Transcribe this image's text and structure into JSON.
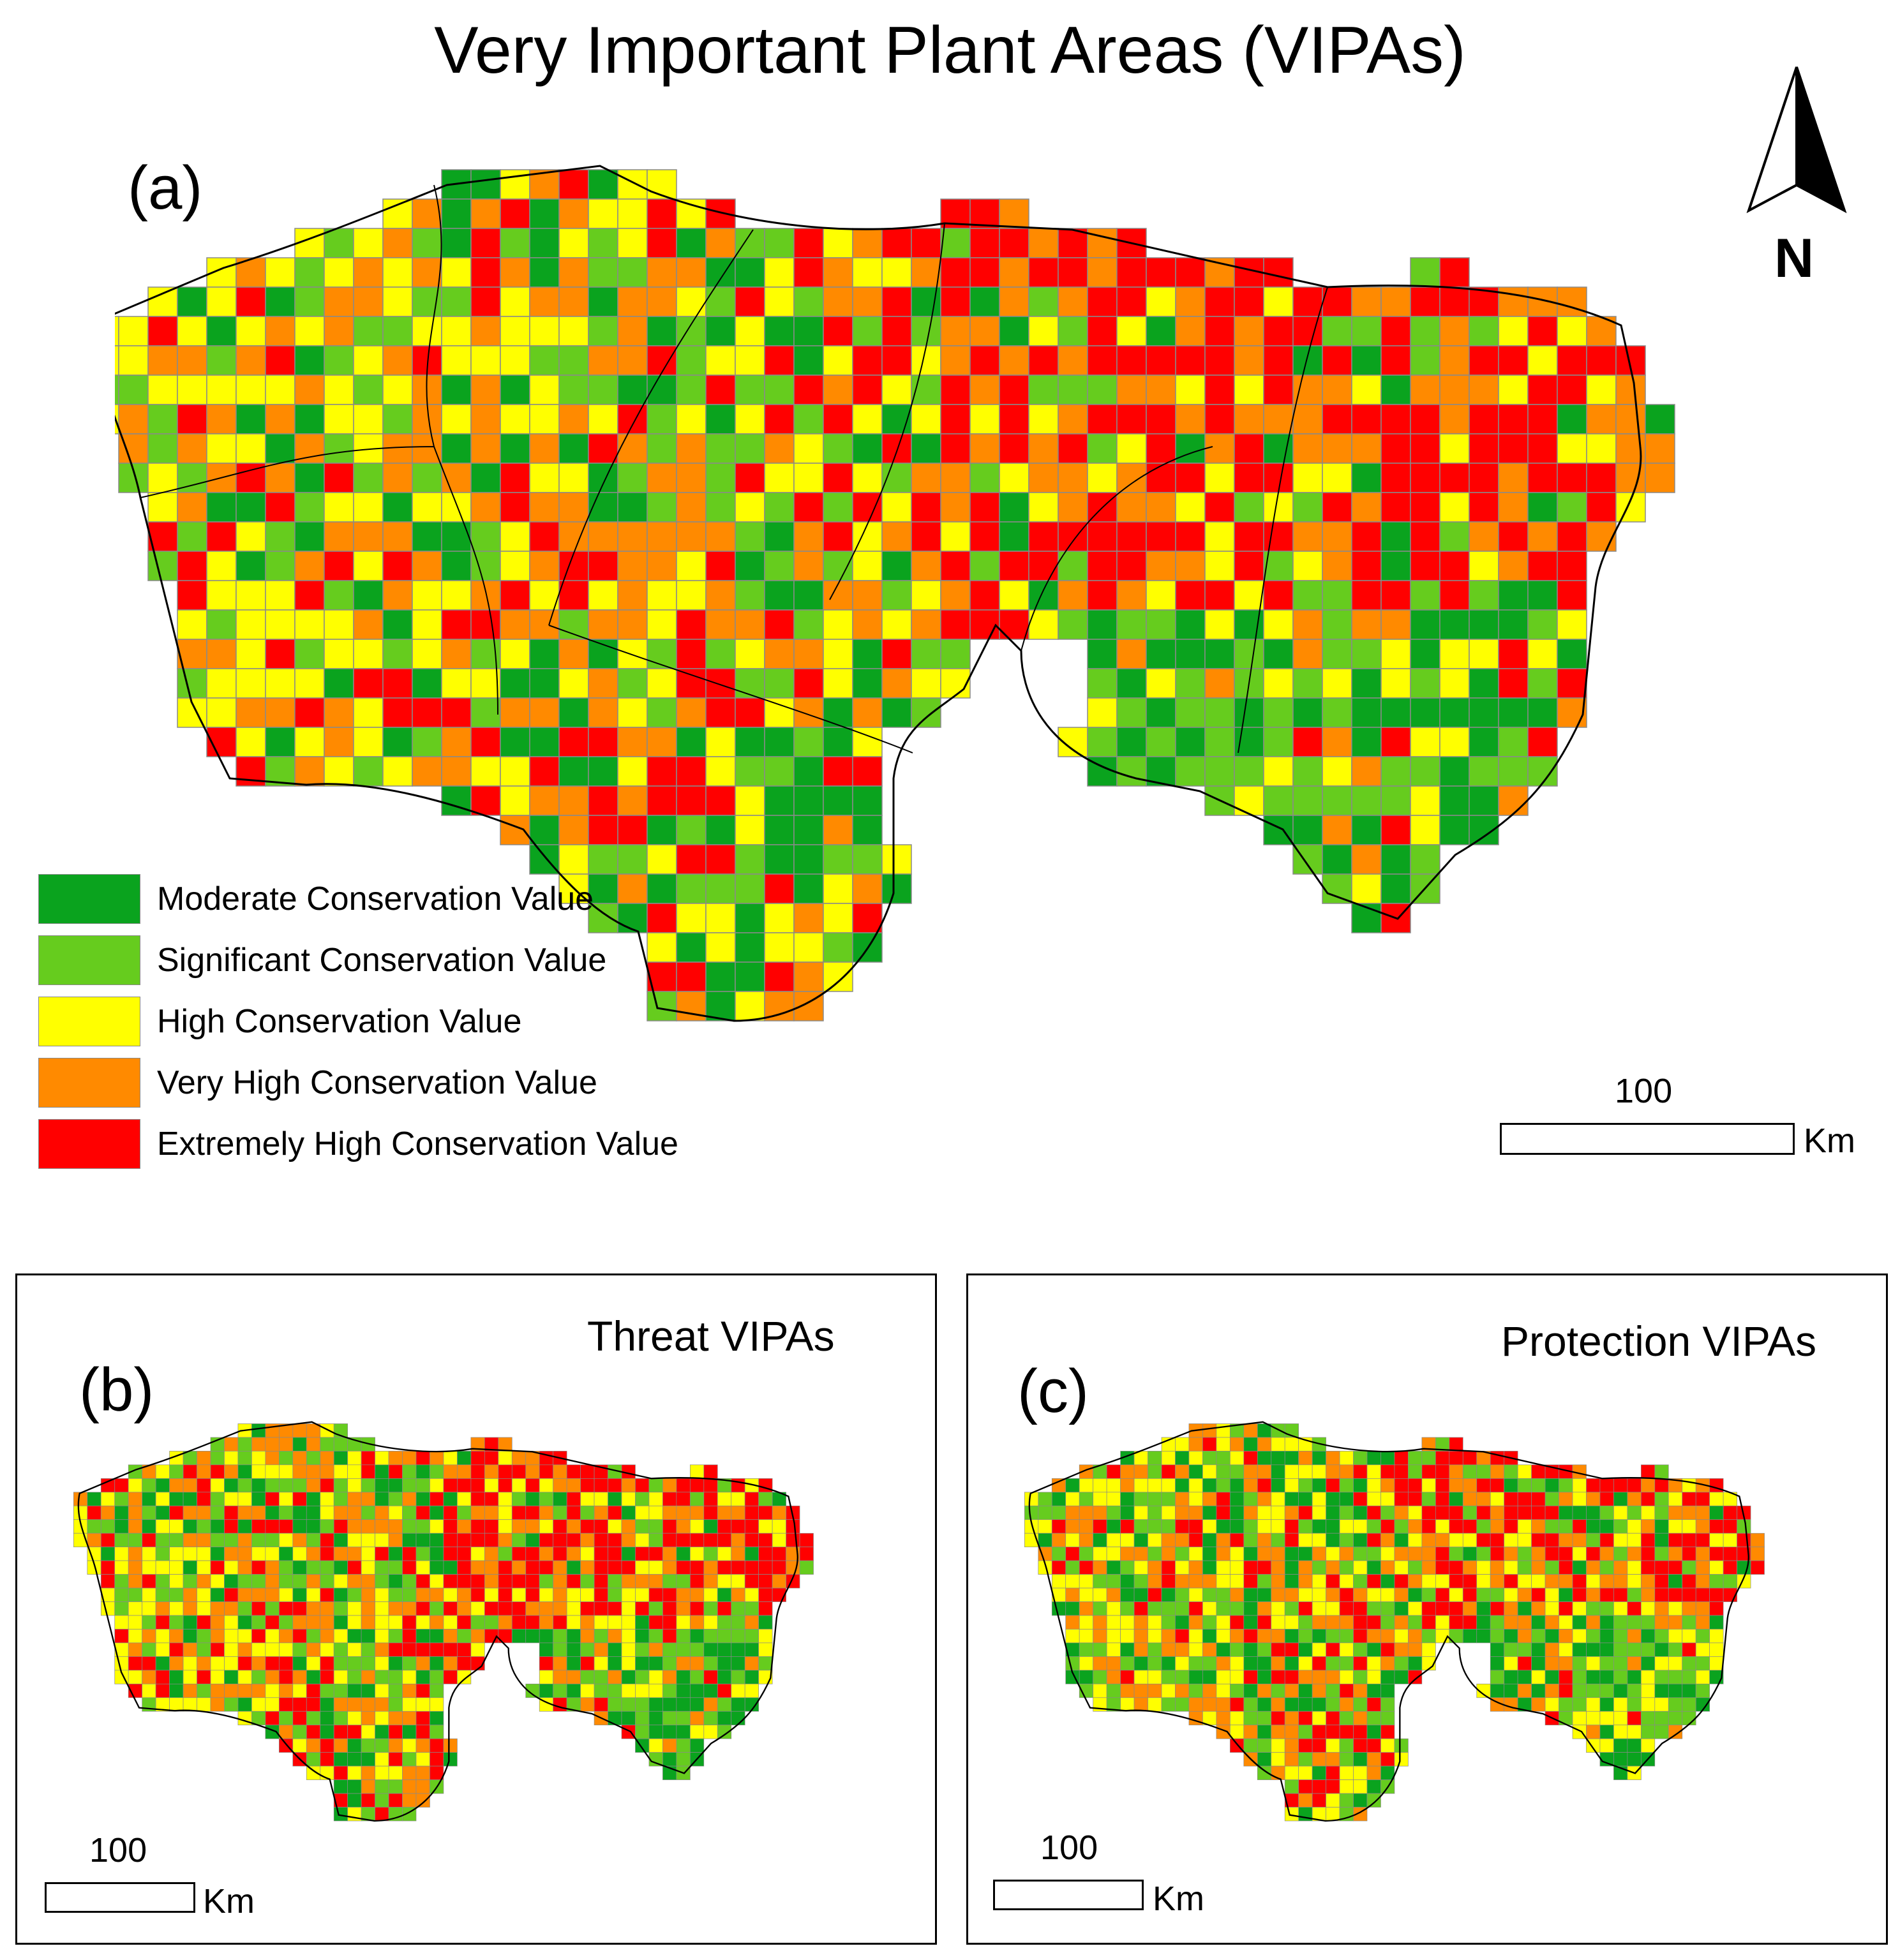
{
  "title": "Very Important Plant Areas (VIPAs)",
  "panels": {
    "a": {
      "label": "(a)"
    },
    "b": {
      "label": "(b)",
      "title": "Threat VIPAs"
    },
    "c": {
      "label": "(c)",
      "title": "Protection VIPAs"
    }
  },
  "north_arrow": {
    "label": "N",
    "icon": "north-arrow-icon"
  },
  "scale_bar": {
    "value": "100",
    "unit": "Km"
  },
  "legend": {
    "items": [
      {
        "label": "Moderate Conservation Value",
        "color": "#0aa31e"
      },
      {
        "label": "Significant Conservation Value",
        "color": "#66cc1e"
      },
      {
        "label": "High Conservation Value",
        "color": "#ffff00"
      },
      {
        "label": "Very High Conservation Value",
        "color": "#ff8a00"
      },
      {
        "label": "Extremely High Conservation Value",
        "color": "#ff0000"
      }
    ]
  },
  "map_style": {
    "grid_line": "#8a8a8a",
    "boundary": "#000000"
  }
}
